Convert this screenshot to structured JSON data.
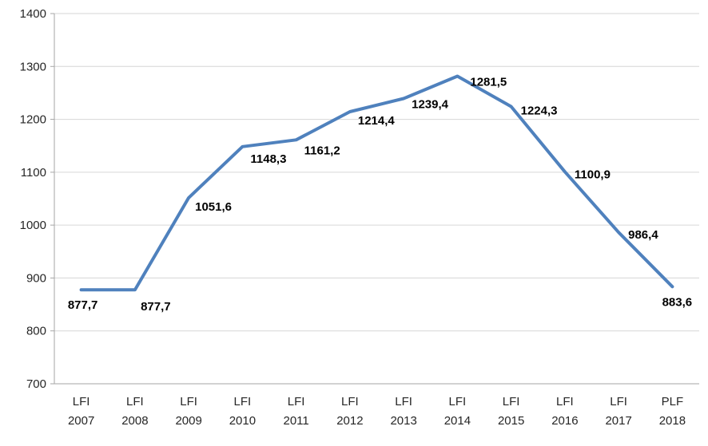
{
  "chart_data": {
    "type": "line",
    "title": "",
    "xlabel": "",
    "ylabel": "",
    "categories": [
      [
        "LFI",
        "2007"
      ],
      [
        "LFI",
        "2008"
      ],
      [
        "LFI",
        "2009"
      ],
      [
        "LFI",
        "2010"
      ],
      [
        "LFI",
        "2011"
      ],
      [
        "LFI",
        "2012"
      ],
      [
        "LFI",
        "2013"
      ],
      [
        "LFI",
        "2014"
      ],
      [
        "LFI",
        "2015"
      ],
      [
        "LFI",
        "2016"
      ],
      [
        "LFI",
        "2017"
      ],
      [
        "PLF",
        "2018"
      ]
    ],
    "values": [
      877.7,
      877.7,
      1051.6,
      1148.3,
      1161.2,
      1214.4,
      1239.4,
      1281.5,
      1224.3,
      1100.9,
      986.4,
      883.6
    ],
    "data_labels": [
      "877,7",
      "877,7",
      "1051,6",
      "1148,3",
      "1161,2",
      "1214,4",
      "1239,4",
      "1281,5",
      "1224,3",
      "1100,9",
      "986,4",
      "883,6"
    ],
    "ylim": [
      700,
      1400
    ],
    "ytick_step": 100,
    "grid": true,
    "legend": "none",
    "colors": {
      "series_line": "#4F81BD",
      "gridline": "#d6d6d6",
      "axis_line": "#a6a6a6",
      "axis_text": "#262626",
      "data_label_text": "#000000"
    }
  }
}
